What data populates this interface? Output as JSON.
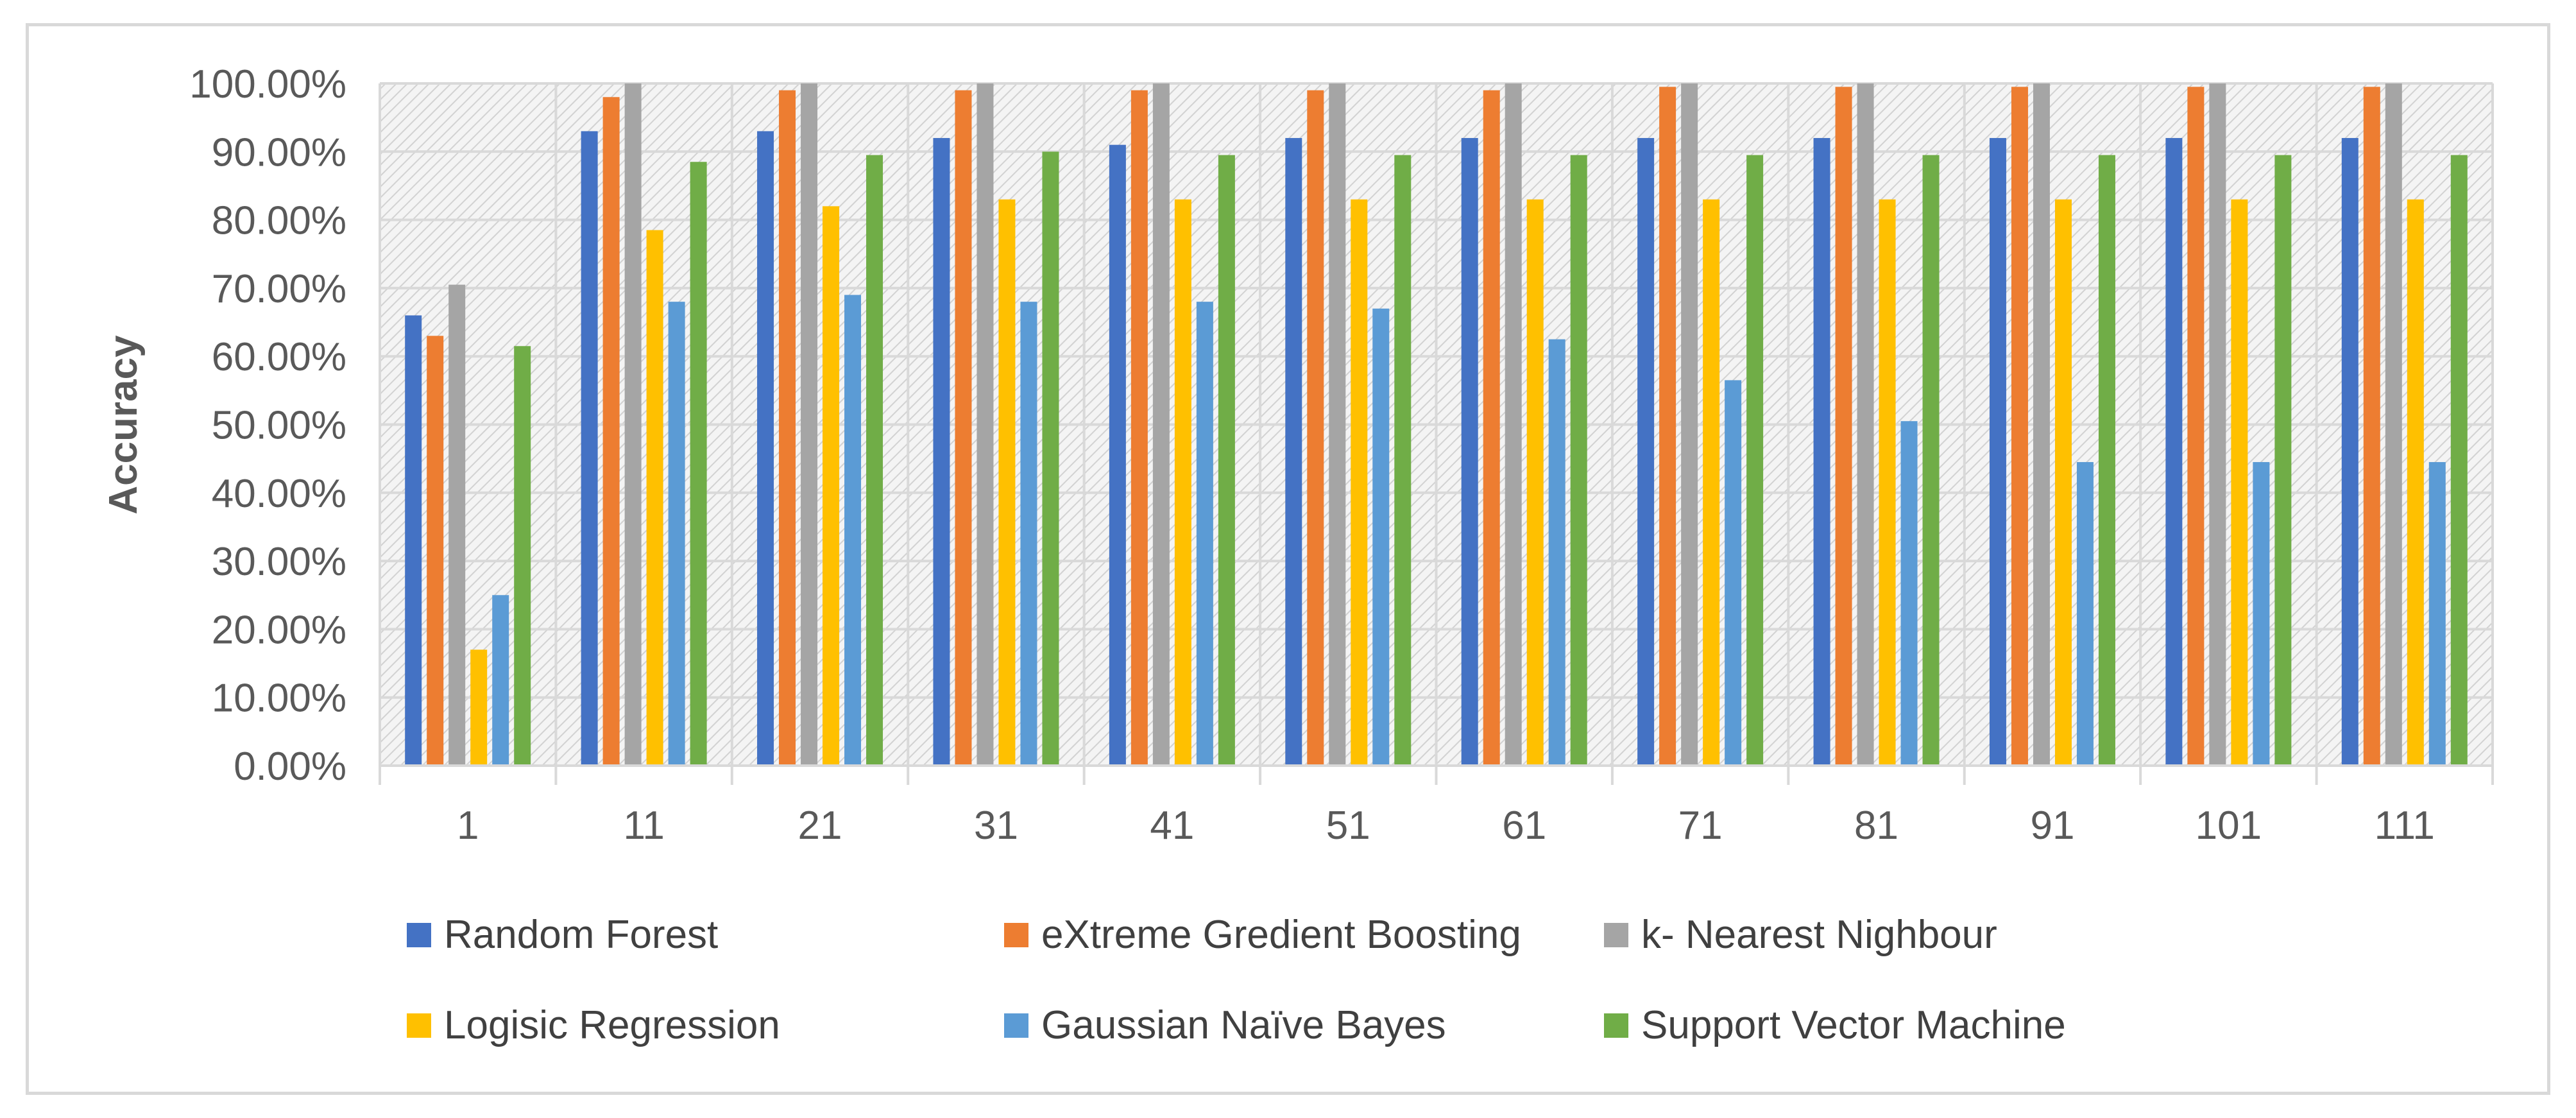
{
  "chart_data": {
    "type": "bar",
    "title": "",
    "xlabel": "",
    "ylabel": "Accuracy",
    "ylim": [
      0,
      1
    ],
    "y_ticks": [
      "0.00%",
      "10.00%",
      "20.00%",
      "30.00%",
      "40.00%",
      "50.00%",
      "60.00%",
      "70.00%",
      "80.00%",
      "90.00%",
      "100.00%"
    ],
    "categories": [
      "1",
      "11",
      "21",
      "31",
      "41",
      "51",
      "61",
      "71",
      "81",
      "91",
      "101",
      "111"
    ],
    "grid": true,
    "plot_background": "diagonal-hatch",
    "legend_position": "bottom",
    "series": [
      {
        "name": "Random Forest",
        "color": "#4472c4",
        "values": [
          0.66,
          0.93,
          0.93,
          0.92,
          0.91,
          0.92,
          0.92,
          0.92,
          0.92,
          0.92,
          0.92,
          0.92
        ]
      },
      {
        "name": "eXtreme Gredient Boosting",
        "color": "#ed7d31",
        "values": [
          0.63,
          0.98,
          0.99,
          0.99,
          0.99,
          0.99,
          0.99,
          0.995,
          0.995,
          0.995,
          0.995,
          0.995
        ]
      },
      {
        "name": "k- Nearest Nighbour",
        "color": "#a5a5a5",
        "values": [
          0.705,
          1.0,
          1.0,
          1.0,
          1.0,
          1.0,
          1.0,
          1.0,
          1.0,
          1.0,
          1.0,
          1.0
        ]
      },
      {
        "name": "Logisic Regression",
        "color": "#ffc000",
        "values": [
          0.17,
          0.785,
          0.82,
          0.83,
          0.83,
          0.83,
          0.83,
          0.83,
          0.83,
          0.83,
          0.83,
          0.83
        ]
      },
      {
        "name": "Gaussian Naïve Bayes",
        "color": "#5b9bd5",
        "values": [
          0.25,
          0.68,
          0.69,
          0.68,
          0.68,
          0.67,
          0.625,
          0.565,
          0.505,
          0.445,
          0.445,
          0.445
        ]
      },
      {
        "name": "Support Vector Machine",
        "color": "#70ad47",
        "values": [
          0.615,
          0.885,
          0.895,
          0.9,
          0.895,
          0.895,
          0.895,
          0.895,
          0.895,
          0.895,
          0.895,
          0.895
        ]
      }
    ]
  }
}
